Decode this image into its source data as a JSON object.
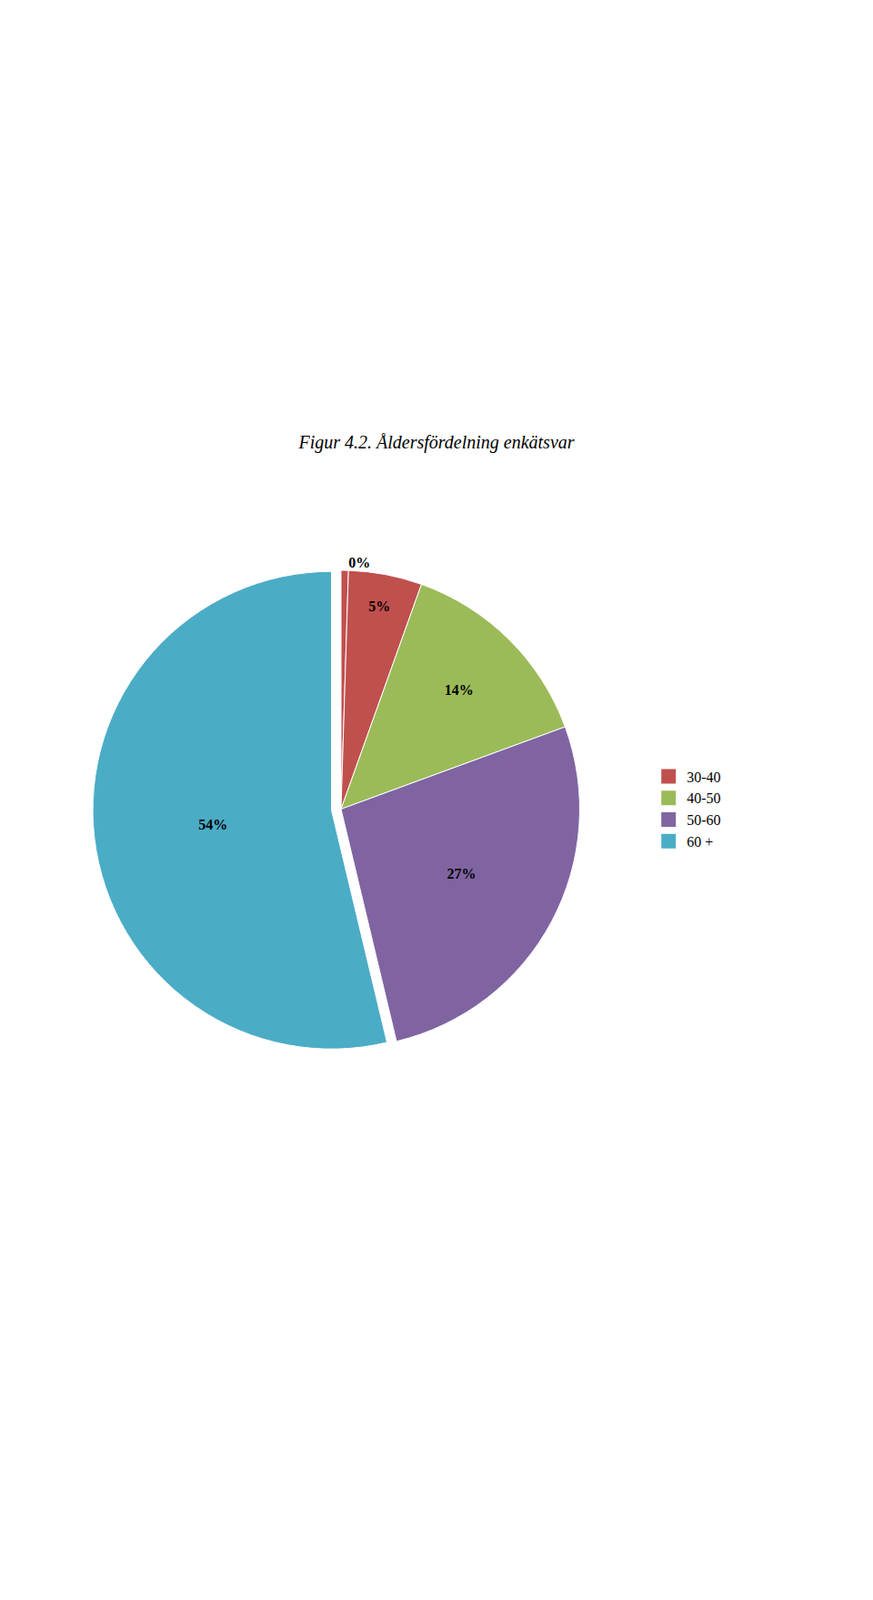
{
  "chart_data": {
    "type": "pie",
    "title": "Figur 4.2. Åldersfördelning enkätsvar",
    "categories": [
      null,
      "30-40",
      "40-50",
      "50-60",
      "60 +"
    ],
    "values": [
      0.5,
      5,
      14,
      27,
      54
    ],
    "value_labels": [
      "0%",
      "5%",
      "14%",
      "27%",
      "54%"
    ],
    "colors": [
      "#c0504d",
      "#c0504d",
      "#9bbb59",
      "#8064a2",
      "#4bacc6"
    ],
    "data_labels": true,
    "legend": "right"
  }
}
